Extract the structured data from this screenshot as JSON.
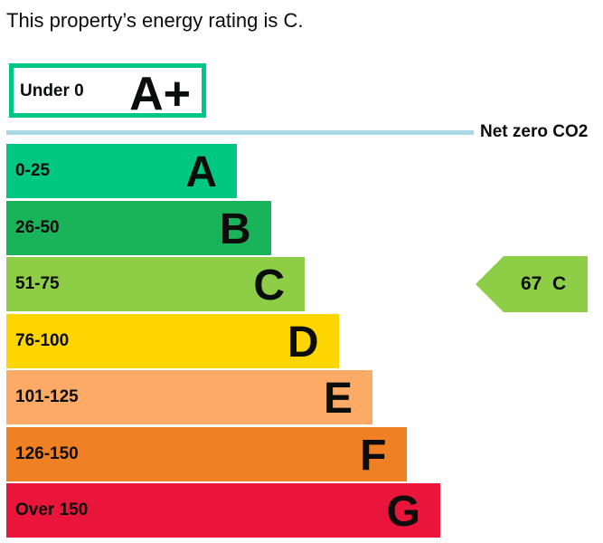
{
  "heading": "This property’s energy rating is C.",
  "chart_data": {
    "type": "bar",
    "title": "This property’s energy rating is C.",
    "top_band": {
      "range": "Under 0",
      "letter": "A+",
      "color": "#00c781"
    },
    "net_zero": {
      "label": "Net zero CO2",
      "color": "#a8d8e4"
    },
    "bands": [
      {
        "range": "0-25",
        "letter": "A",
        "color": "#00c781"
      },
      {
        "range": "26-50",
        "letter": "B",
        "color": "#19b459"
      },
      {
        "range": "51-75",
        "letter": "C",
        "color": "#8dce46"
      },
      {
        "range": "76-100",
        "letter": "D",
        "color": "#ffd500"
      },
      {
        "range": "101-125",
        "letter": "E",
        "color": "#fcaa65"
      },
      {
        "range": "126-150",
        "letter": "F",
        "color": "#ef8023"
      },
      {
        "range": "Over 150",
        "letter": "G",
        "color": "#e9153b"
      }
    ],
    "current_rating": {
      "score": "67",
      "letter": "C",
      "band_index": 2,
      "color": "#8dce46"
    }
  }
}
